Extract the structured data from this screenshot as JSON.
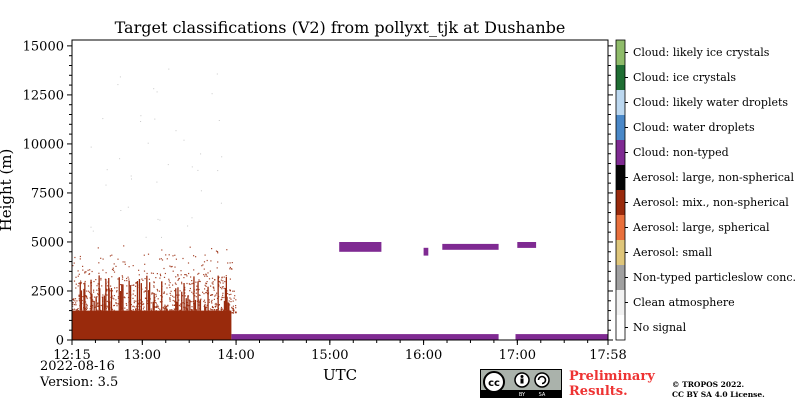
{
  "chart_data": {
    "type": "heatmap",
    "title": "Target classifications (V2) from pollyxt_tjk at Dushanbe",
    "xlabel": "UTC",
    "ylabel": "Height (m)",
    "x_ticks": [
      "12:15",
      "13:00",
      "14:00",
      "15:00",
      "16:00",
      "17:00",
      "17:58"
    ],
    "x_tick_hours": [
      12.25,
      13.0,
      14.0,
      15.0,
      16.0,
      17.0,
      17.967
    ],
    "xlim_hours": [
      12.25,
      17.967
    ],
    "y_ticks": [
      0,
      2500,
      5000,
      7500,
      10000,
      12500,
      15000
    ],
    "ylim": [
      0,
      15300
    ],
    "grid": false,
    "legend_position": "right colorbar",
    "classes": [
      {
        "label": "No signal",
        "color": "#ffffff"
      },
      {
        "label": "Clean atmosphere",
        "color": "#f2f2f2"
      },
      {
        "label": "Non-typed particleslow conc.",
        "color": "#a0a0a0"
      },
      {
        "label": "Aerosol: small",
        "color": "#dfc67a"
      },
      {
        "label": "Aerosol: large, spherical",
        "color": "#e9703c"
      },
      {
        "label": "Aerosol: mix., non-spherical",
        "color": "#992a0c"
      },
      {
        "label": "Aerosol: large, non-spherical",
        "color": "#050505"
      },
      {
        "label": "Cloud: non-typed",
        "color": "#7f2a92"
      },
      {
        "label": "Cloud: water droplets",
        "color": "#4a88c8"
      },
      {
        "label": "Cloud: likely water droplets",
        "color": "#bcd8f0"
      },
      {
        "label": "Cloud: ice crystals",
        "color": "#1f6e33"
      },
      {
        "label": "Cloud: likely ice crystals",
        "color": "#8fbc6a"
      }
    ],
    "regions": [
      {
        "class": "Aerosol: mix., non-spherical",
        "x_start": 12.25,
        "x_end": 13.95,
        "y_start": 0,
        "y_end": 1500
      },
      {
        "class": "Cloud: non-typed",
        "x_start": 13.95,
        "x_end": 16.8,
        "y_start": 0,
        "y_end": 300
      },
      {
        "class": "Cloud: non-typed",
        "x_start": 16.98,
        "x_end": 17.967,
        "y_start": 0,
        "y_end": 300
      },
      {
        "class": "Cloud: non-typed",
        "x_start": 15.1,
        "x_end": 15.55,
        "y_start": 4500,
        "y_end": 5000
      },
      {
        "class": "Cloud: non-typed",
        "x_start": 16.0,
        "x_end": 16.05,
        "y_start": 4300,
        "y_end": 4700
      },
      {
        "class": "Cloud: non-typed",
        "x_start": 16.2,
        "x_end": 16.8,
        "y_start": 4600,
        "y_end": 4900
      },
      {
        "class": "Cloud: non-typed",
        "x_start": 17.0,
        "x_end": 17.2,
        "y_start": 4700,
        "y_end": 5000
      }
    ]
  },
  "footer": {
    "date": "2022-08-16",
    "version": "Version: 3.5",
    "preliminary_line1": "Preliminary",
    "preliminary_line2": "Results.",
    "copyright_line1": "© TROPOS 2022.",
    "copyright_line2": "CC BY SA 4.0 License.",
    "license_badge": "cc-by-sa-badge"
  }
}
